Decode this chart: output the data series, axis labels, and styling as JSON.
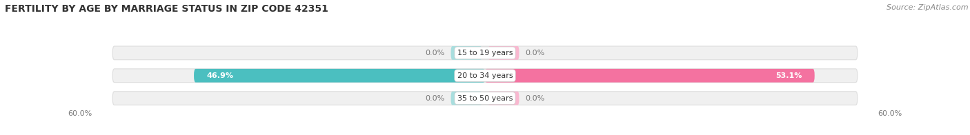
{
  "title": "FERTILITY BY AGE BY MARRIAGE STATUS IN ZIP CODE 42351",
  "source": "Source: ZipAtlas.com",
  "categories": [
    "15 to 19 years",
    "20 to 34 years",
    "35 to 50 years"
  ],
  "married_values": [
    0.0,
    46.9,
    0.0
  ],
  "unmarried_values": [
    0.0,
    53.1,
    0.0
  ],
  "max_value": 60.0,
  "married_color": "#4bbfc0",
  "unmarried_color": "#f472a0",
  "married_color_light": "#a8dede",
  "unmarried_color_light": "#f9b8d0",
  "bar_bg_color": "#f0f0f0",
  "bar_bg_edge_color": "#dddddd",
  "title_color": "#333333",
  "source_color": "#888888",
  "value_label_color_white": "#ffffff",
  "value_label_color_dark": "#666666",
  "axis_label_color": "#777777",
  "category_label_color": "#333333",
  "title_fontsize": 10,
  "source_fontsize": 8,
  "bar_label_fontsize": 8,
  "category_label_fontsize": 8,
  "axis_fontsize": 8,
  "legend_fontsize": 8
}
